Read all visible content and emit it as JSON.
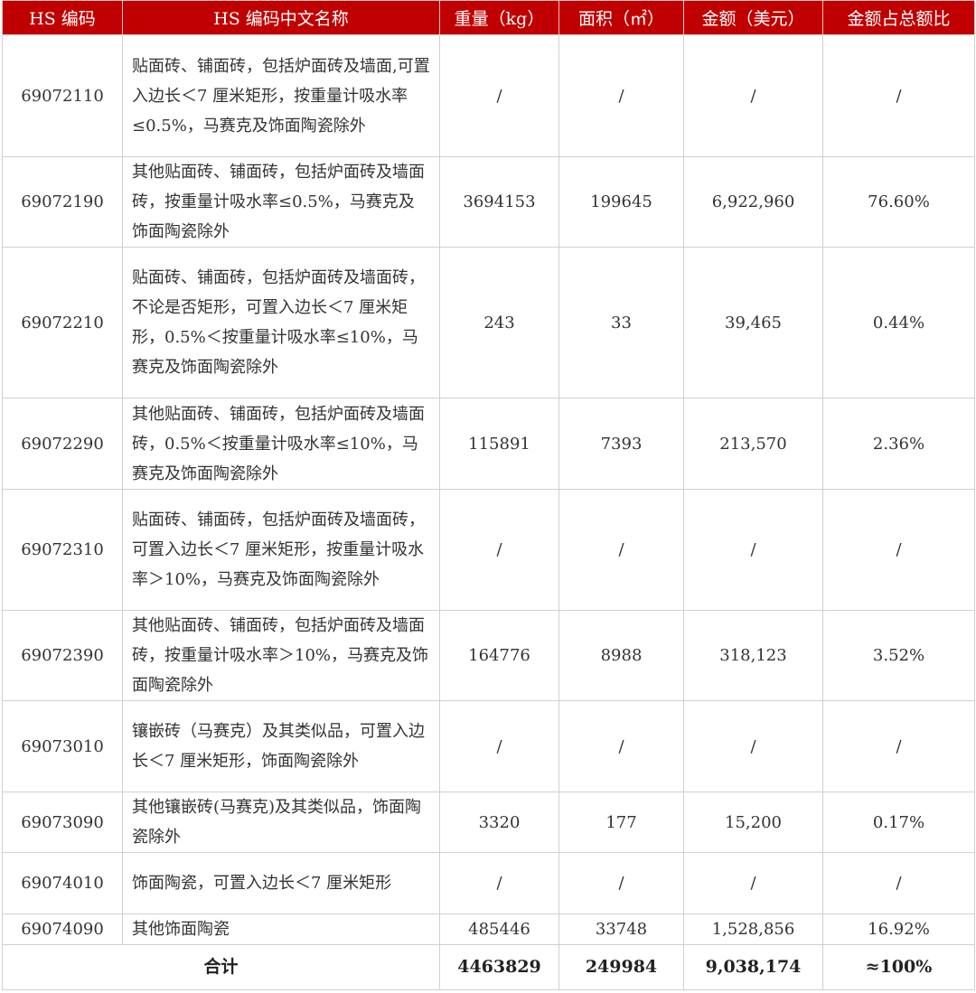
{
  "header": [
    "HS 编码",
    "HS 编码中文名称",
    "重量（kg）",
    "面积（㎡）",
    "金额（美元）",
    "金额占总额比"
  ],
  "rows": [
    {
      "code": "69072110",
      "name": "贴面砖、铺面砖，包括炉面砖及墙面,可置入边长＜7 厘米矩形，按重量计吸水率≤0.5%，马赛克及饰面陶瓷除外",
      "weight": "/",
      "area": "/",
      "amount": "/",
      "share": "/"
    },
    {
      "code": "69072190",
      "name": "其他贴面砖、铺面砖，包括炉面砖及墙面砖，按重量计吸水率≤0.5%，马赛克及饰面陶瓷除外",
      "weight": "3694153",
      "area": "199645",
      "amount": "6,922,960",
      "share": "76.60%"
    },
    {
      "code": "69072210",
      "name": "贴面砖、铺面砖，包括炉面砖及墙面砖，不论是否矩形，可置入边长＜7 厘米矩形，0.5%＜按重量计吸水率≤10%，马赛克及饰面陶瓷除外",
      "weight": "243",
      "area": "33",
      "amount": "39,465",
      "share": "0.44%"
    },
    {
      "code": "69072290",
      "name": "其他贴面砖、铺面砖，包括炉面砖及墙面砖，0.5%＜按重量计吸水率≤10%，马赛克及饰面陶瓷除外",
      "weight": "115891",
      "area": "7393",
      "amount": "213,570",
      "share": "2.36%"
    },
    {
      "code": "69072310",
      "name": "贴面砖、铺面砖，包括炉面砖及墙面砖，可置入边长＜7 厘米矩形，按重量计吸水率＞10%，马赛克及饰面陶瓷除外",
      "weight": "/",
      "area": "/",
      "amount": "/",
      "share": "/"
    },
    {
      "code": "69072390",
      "name": "其他贴面砖、铺面砖，包括炉面砖及墙面砖，按重量计吸水率＞10%，马赛克及饰面陶瓷除外",
      "weight": "164776",
      "area": "8988",
      "amount": "318,123",
      "share": "3.52%"
    },
    {
      "code": "69073010",
      "name": "镶嵌砖（马赛克）及其类似品，可置入边长＜7 厘米矩形，饰面陶瓷除外",
      "weight": "/",
      "area": "/",
      "amount": "/",
      "share": "/"
    },
    {
      "code": "69073090",
      "name": "其他镶嵌砖(马赛克)及其类似品，饰面陶瓷除外",
      "weight": "3320",
      "area": "177",
      "amount": "15,200",
      "share": "0.17%"
    },
    {
      "code": "69074010",
      "name": "饰面陶瓷，可置入边长＜7 厘米矩形",
      "weight": "/",
      "area": "/",
      "amount": "/",
      "share": "/"
    },
    {
      "code": "69074090",
      "name": "其他饰面陶瓷",
      "weight": "485446",
      "area": "33748",
      "amount": "1,528,856",
      "share": "16.92%"
    }
  ],
  "total": {
    "label": "合计",
    "weight": "4463829",
    "area": "249984",
    "amount": "9,038,174",
    "share": "≈100%"
  },
  "colors": {
    "header_bg": "#c00000",
    "header_text": "#ffffff"
  }
}
